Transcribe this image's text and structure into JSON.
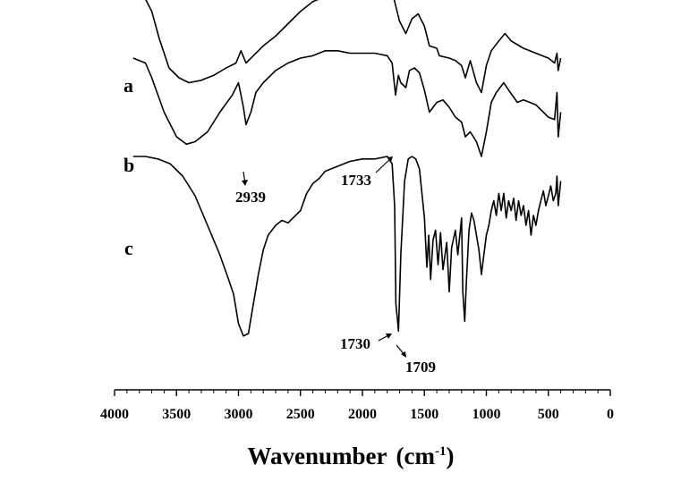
{
  "chart_data": {
    "type": "line",
    "xlabel": "Wavenumber",
    "xlabel_unit": "(cm",
    "xlabel_exp": "-1",
    "xlabel_close": ")",
    "xlim": [
      4000,
      0
    ],
    "x_ticks": [
      4000,
      3500,
      3000,
      2500,
      2000,
      1500,
      1000,
      500,
      0
    ],
    "y_axis_shown": false,
    "grid": false,
    "stacked_offset": true,
    "series": [
      {
        "name": "a",
        "color": "#000000",
        "points": [
          [
            3850,
            0.86
          ],
          [
            3750,
            0.84
          ],
          [
            3700,
            0.79
          ],
          [
            3640,
            0.68
          ],
          [
            3560,
            0.56
          ],
          [
            3480,
            0.52
          ],
          [
            3400,
            0.5
          ],
          [
            3300,
            0.51
          ],
          [
            3200,
            0.53
          ],
          [
            3100,
            0.56
          ],
          [
            3020,
            0.58
          ],
          [
            2980,
            0.63
          ],
          [
            2939,
            0.58
          ],
          [
            2880,
            0.61
          ],
          [
            2800,
            0.65
          ],
          [
            2700,
            0.69
          ],
          [
            2600,
            0.74
          ],
          [
            2500,
            0.79
          ],
          [
            2400,
            0.83
          ],
          [
            2300,
            0.85
          ],
          [
            2200,
            0.86
          ],
          [
            2100,
            0.87
          ],
          [
            2000,
            0.88
          ],
          [
            1900,
            0.89
          ],
          [
            1800,
            0.88
          ],
          [
            1750,
            0.85
          ],
          [
            1700,
            0.75
          ],
          [
            1650,
            0.7
          ],
          [
            1600,
            0.76
          ],
          [
            1550,
            0.78
          ],
          [
            1500,
            0.73
          ],
          [
            1460,
            0.65
          ],
          [
            1400,
            0.64
          ],
          [
            1380,
            0.61
          ],
          [
            1300,
            0.6
          ],
          [
            1250,
            0.59
          ],
          [
            1200,
            0.57
          ],
          [
            1170,
            0.52
          ],
          [
            1130,
            0.59
          ],
          [
            1080,
            0.5
          ],
          [
            1040,
            0.46
          ],
          [
            1000,
            0.57
          ],
          [
            960,
            0.63
          ],
          [
            900,
            0.67
          ],
          [
            850,
            0.7
          ],
          [
            800,
            0.67
          ],
          [
            700,
            0.64
          ],
          [
            600,
            0.62
          ],
          [
            500,
            0.6
          ],
          [
            450,
            0.58
          ],
          [
            430,
            0.62
          ],
          [
            420,
            0.55
          ],
          [
            400,
            0.6
          ]
        ]
      },
      {
        "name": "b",
        "color": "#000000",
        "points": [
          [
            3850,
            0.6
          ],
          [
            3750,
            0.58
          ],
          [
            3700,
            0.52
          ],
          [
            3600,
            0.38
          ],
          [
            3500,
            0.28
          ],
          [
            3420,
            0.25
          ],
          [
            3350,
            0.26
          ],
          [
            3250,
            0.3
          ],
          [
            3150,
            0.38
          ],
          [
            3050,
            0.45
          ],
          [
            3000,
            0.5
          ],
          [
            2960,
            0.4
          ],
          [
            2939,
            0.33
          ],
          [
            2900,
            0.38
          ],
          [
            2860,
            0.46
          ],
          [
            2800,
            0.5
          ],
          [
            2700,
            0.55
          ],
          [
            2600,
            0.58
          ],
          [
            2500,
            0.6
          ],
          [
            2400,
            0.61
          ],
          [
            2300,
            0.63
          ],
          [
            2200,
            0.63
          ],
          [
            2100,
            0.62
          ],
          [
            2000,
            0.62
          ],
          [
            1900,
            0.62
          ],
          [
            1800,
            0.61
          ],
          [
            1760,
            0.58
          ],
          [
            1733,
            0.45
          ],
          [
            1710,
            0.53
          ],
          [
            1690,
            0.5
          ],
          [
            1650,
            0.48
          ],
          [
            1620,
            0.55
          ],
          [
            1580,
            0.56
          ],
          [
            1540,
            0.54
          ],
          [
            1500,
            0.47
          ],
          [
            1460,
            0.38
          ],
          [
            1400,
            0.42
          ],
          [
            1350,
            0.43
          ],
          [
            1300,
            0.4
          ],
          [
            1250,
            0.36
          ],
          [
            1200,
            0.34
          ],
          [
            1170,
            0.28
          ],
          [
            1130,
            0.3
          ],
          [
            1080,
            0.26
          ],
          [
            1040,
            0.2
          ],
          [
            1000,
            0.3
          ],
          [
            960,
            0.42
          ],
          [
            920,
            0.46
          ],
          [
            860,
            0.5
          ],
          [
            820,
            0.47
          ],
          [
            750,
            0.42
          ],
          [
            700,
            0.43
          ],
          [
            600,
            0.41
          ],
          [
            540,
            0.38
          ],
          [
            500,
            0.36
          ],
          [
            450,
            0.35
          ],
          [
            430,
            0.46
          ],
          [
            420,
            0.28
          ],
          [
            400,
            0.38
          ]
        ]
      },
      {
        "name": "c",
        "color": "#000000",
        "points": [
          [
            3850,
            0.2
          ],
          [
            3750,
            0.2
          ],
          [
            3650,
            0.19
          ],
          [
            3550,
            0.17
          ],
          [
            3450,
            0.12
          ],
          [
            3350,
            0.04
          ],
          [
            3250,
            -0.08
          ],
          [
            3150,
            -0.2
          ],
          [
            3080,
            -0.3
          ],
          [
            3040,
            -0.36
          ],
          [
            3000,
            -0.48
          ],
          [
            2960,
            -0.53
          ],
          [
            2920,
            -0.52
          ],
          [
            2880,
            -0.4
          ],
          [
            2840,
            -0.28
          ],
          [
            2800,
            -0.18
          ],
          [
            2760,
            -0.12
          ],
          [
            2700,
            -0.08
          ],
          [
            2650,
            -0.06
          ],
          [
            2600,
            -0.07
          ],
          [
            2500,
            -0.02
          ],
          [
            2450,
            0.05
          ],
          [
            2400,
            0.09
          ],
          [
            2350,
            0.11
          ],
          [
            2300,
            0.14
          ],
          [
            2200,
            0.16
          ],
          [
            2100,
            0.18
          ],
          [
            2000,
            0.19
          ],
          [
            1900,
            0.19
          ],
          [
            1800,
            0.2
          ],
          [
            1760,
            0.17
          ],
          [
            1740,
            0.0
          ],
          [
            1730,
            -0.4
          ],
          [
            1720,
            -0.45
          ],
          [
            1709,
            -0.51
          ],
          [
            1690,
            -0.2
          ],
          [
            1660,
            0.1
          ],
          [
            1630,
            0.19
          ],
          [
            1600,
            0.2
          ],
          [
            1570,
            0.19
          ],
          [
            1540,
            0.15
          ],
          [
            1500,
            -0.05
          ],
          [
            1480,
            -0.25
          ],
          [
            1465,
            -0.12
          ],
          [
            1450,
            -0.3
          ],
          [
            1430,
            -0.14
          ],
          [
            1410,
            -0.1
          ],
          [
            1390,
            -0.24
          ],
          [
            1370,
            -0.11
          ],
          [
            1350,
            -0.26
          ],
          [
            1320,
            -0.15
          ],
          [
            1300,
            -0.35
          ],
          [
            1280,
            -0.17
          ],
          [
            1250,
            -0.1
          ],
          [
            1230,
            -0.2
          ],
          [
            1200,
            -0.05
          ],
          [
            1190,
            -0.35
          ],
          [
            1175,
            -0.47
          ],
          [
            1160,
            -0.3
          ],
          [
            1140,
            -0.1
          ],
          [
            1120,
            -0.03
          ],
          [
            1100,
            -0.06
          ],
          [
            1080,
            -0.12
          ],
          [
            1060,
            -0.18
          ],
          [
            1040,
            -0.28
          ],
          [
            1020,
            -0.2
          ],
          [
            1000,
            -0.12
          ],
          [
            980,
            -0.08
          ],
          [
            960,
            -0.02
          ],
          [
            940,
            0.02
          ],
          [
            920,
            -0.04
          ],
          [
            900,
            0.05
          ],
          [
            880,
            -0.02
          ],
          [
            860,
            0.05
          ],
          [
            840,
            -0.05
          ],
          [
            820,
            0.02
          ],
          [
            800,
            -0.02
          ],
          [
            780,
            0.03
          ],
          [
            760,
            -0.06
          ],
          [
            740,
            0.02
          ],
          [
            720,
            -0.04
          ],
          [
            700,
            0.0
          ],
          [
            680,
            -0.08
          ],
          [
            660,
            -0.02
          ],
          [
            640,
            -0.12
          ],
          [
            620,
            -0.04
          ],
          [
            600,
            -0.08
          ],
          [
            580,
            -0.02
          ],
          [
            560,
            0.02
          ],
          [
            540,
            0.06
          ],
          [
            520,
            0.0
          ],
          [
            500,
            0.04
          ],
          [
            480,
            0.08
          ],
          [
            460,
            0.02
          ],
          [
            440,
            0.05
          ],
          [
            430,
            0.12
          ],
          [
            420,
            0.0
          ],
          [
            400,
            0.1
          ]
        ]
      }
    ],
    "series_labels": [
      "a",
      "b",
      "c"
    ],
    "annotations": [
      {
        "text": "2939",
        "series": "b",
        "x": 2939
      },
      {
        "text": "1733",
        "series": "b",
        "x": 1733
      },
      {
        "text": "1730",
        "series": "c",
        "x": 1730
      },
      {
        "text": "1709",
        "series": "c",
        "x": 1709
      }
    ]
  }
}
